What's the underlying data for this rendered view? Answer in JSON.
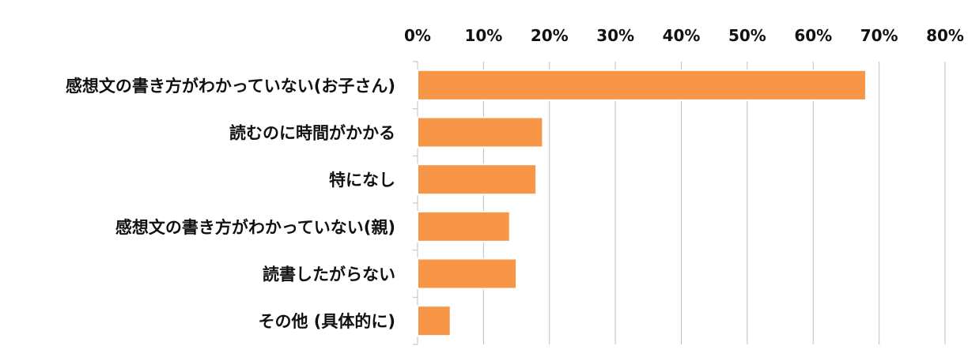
{
  "chart_data": {
    "type": "bar",
    "orientation": "horizontal",
    "categories": [
      "感想文の書き方がわかっていない(お子さん)",
      "読むのに時間がかかる",
      "特になし",
      "感想文の書き方がわかっていない(親)",
      "読書したがらない",
      "その他 (具体的に)"
    ],
    "values": [
      68,
      19,
      18,
      14,
      15,
      5
    ],
    "x_ticks": [
      "0%",
      "10%",
      "20%",
      "30%",
      "40%",
      "50%",
      "60%",
      "70%",
      "80%"
    ],
    "xlim": [
      0,
      80
    ],
    "grid": true,
    "bar_color": "#f79646",
    "bar_border_color": "#ffffff",
    "grid_color": "#bfbfbf"
  }
}
